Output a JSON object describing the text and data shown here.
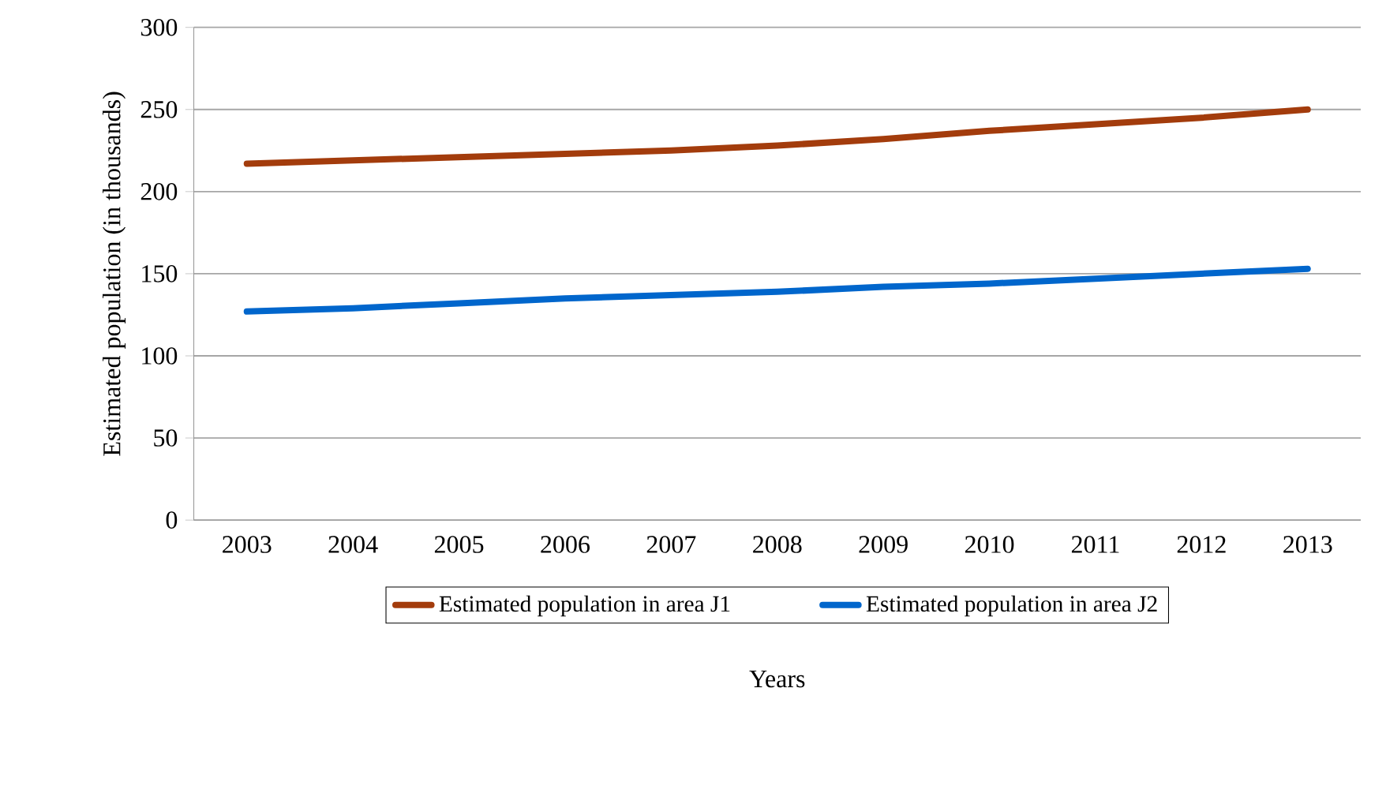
{
  "chart_data": {
    "type": "line",
    "xlabel": "Years",
    "ylabel": "Estimated population (in thousands)",
    "categories": [
      "2003",
      "2004",
      "2005",
      "2006",
      "2007",
      "2008",
      "2009",
      "2010",
      "2011",
      "2012",
      "2013"
    ],
    "series": [
      {
        "name": "Estimated population in area J1",
        "color": "#a33c0c",
        "values": [
          217,
          219,
          221,
          223,
          225,
          228,
          232,
          237,
          241,
          245,
          250
        ]
      },
      {
        "name": "Estimated population in area J2",
        "color": "#0066cc",
        "values": [
          127,
          129,
          132,
          135,
          137,
          139,
          142,
          144,
          147,
          150,
          153
        ]
      }
    ],
    "ylim": [
      0,
      300
    ],
    "yticks": [
      0,
      50,
      100,
      150,
      200,
      250,
      300
    ],
    "grid": "y",
    "legend": "bottom"
  }
}
